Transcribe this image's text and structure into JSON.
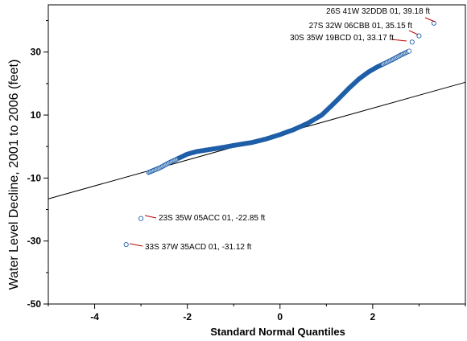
{
  "chart_data": {
    "type": "scatter",
    "title": "",
    "xlabel": "Standard Normal Quantiles",
    "ylabel": "Water Level Decline, 2001 to 2006 (feet)",
    "xlim": [
      -5,
      4
    ],
    "ylim": [
      -50,
      45
    ],
    "x_ticks": [
      -4,
      -2,
      0,
      2
    ],
    "x_tick_labels": [
      "-4",
      "-2",
      "0",
      "2"
    ],
    "y_ticks": [
      -50,
      -30,
      -10,
      10,
      30
    ],
    "y_tick_labels": [
      "-50",
      "-30",
      "-10",
      "10",
      "30"
    ],
    "grid": false,
    "legend": "none",
    "marker_color": "#1f5fa8",
    "line_color": "#000000",
    "leader_color": "#c00000",
    "reference_line": {
      "x": [
        -5,
        4
      ],
      "y": [
        -16.6,
        20.4
      ]
    },
    "bulk_curve": {
      "x": [
        -2.85,
        -2.6,
        -2.4,
        -2.2,
        -2.0,
        -1.8,
        -1.5,
        -1.2,
        -0.9,
        -0.6,
        -0.3,
        0.0,
        0.3,
        0.6,
        0.9,
        1.1,
        1.3,
        1.5,
        1.7,
        1.9,
        2.1,
        2.3,
        2.45,
        2.6,
        2.8
      ],
      "y": [
        -8.3,
        -6.8,
        -5.2,
        -3.8,
        -2.4,
        -1.6,
        -0.9,
        -0.2,
        0.6,
        1.3,
        2.4,
        3.8,
        5.4,
        7.4,
        10.0,
        12.8,
        15.7,
        18.7,
        21.4,
        23.6,
        25.3,
        26.7,
        27.8,
        29.0,
        30.4
      ]
    },
    "labeled_points": [
      {
        "x": 3.32,
        "y": 39.18,
        "label": "26S 41W 32DDB 01, 39.18 ft"
      },
      {
        "x": 3.0,
        "y": 35.15,
        "label": "27S 32W 06CBB 01, 35.15 ft"
      },
      {
        "x": 2.85,
        "y": 33.17,
        "label": "30S 35W 19BCD 01, 33.17 ft"
      },
      {
        "x": -3.0,
        "y": -22.85,
        "label": "23S 35W 05ACC 01,  -22.85 ft"
      },
      {
        "x": -3.32,
        "y": -31.12,
        "label": "33S 37W 35ACD 01,  -31.12 ft"
      }
    ]
  }
}
